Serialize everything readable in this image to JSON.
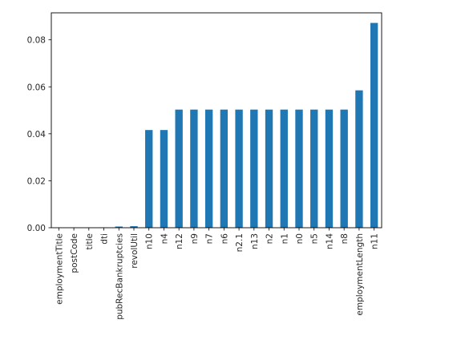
{
  "chart_data": {
    "type": "bar",
    "categories": [
      "employmentTitle",
      "postCode",
      "title",
      "dti",
      "pubRecBankruptcies",
      "revolUtil",
      "n10",
      "n4",
      "n12",
      "n9",
      "n7",
      "n6",
      "n2.1",
      "n13",
      "n2",
      "n1",
      "n0",
      "n5",
      "n14",
      "n8",
      "employmentLength",
      "n11"
    ],
    "values": [
      0.0,
      1e-05,
      1e-05,
      0.00012,
      0.00051,
      0.00066,
      0.0416,
      0.0416,
      0.0503,
      0.0503,
      0.0503,
      0.0503,
      0.0503,
      0.0503,
      0.0503,
      0.0503,
      0.0503,
      0.0503,
      0.0503,
      0.0503,
      0.0585,
      0.0872
    ],
    "yticks": [
      "0.00",
      "0.02",
      "0.04",
      "0.06",
      "0.08"
    ],
    "ylim": [
      0,
      0.0915
    ],
    "bar_color": "#1f77b4",
    "title": "",
    "xlabel": "",
    "ylabel": "",
    "grid": false,
    "legend": "none"
  }
}
